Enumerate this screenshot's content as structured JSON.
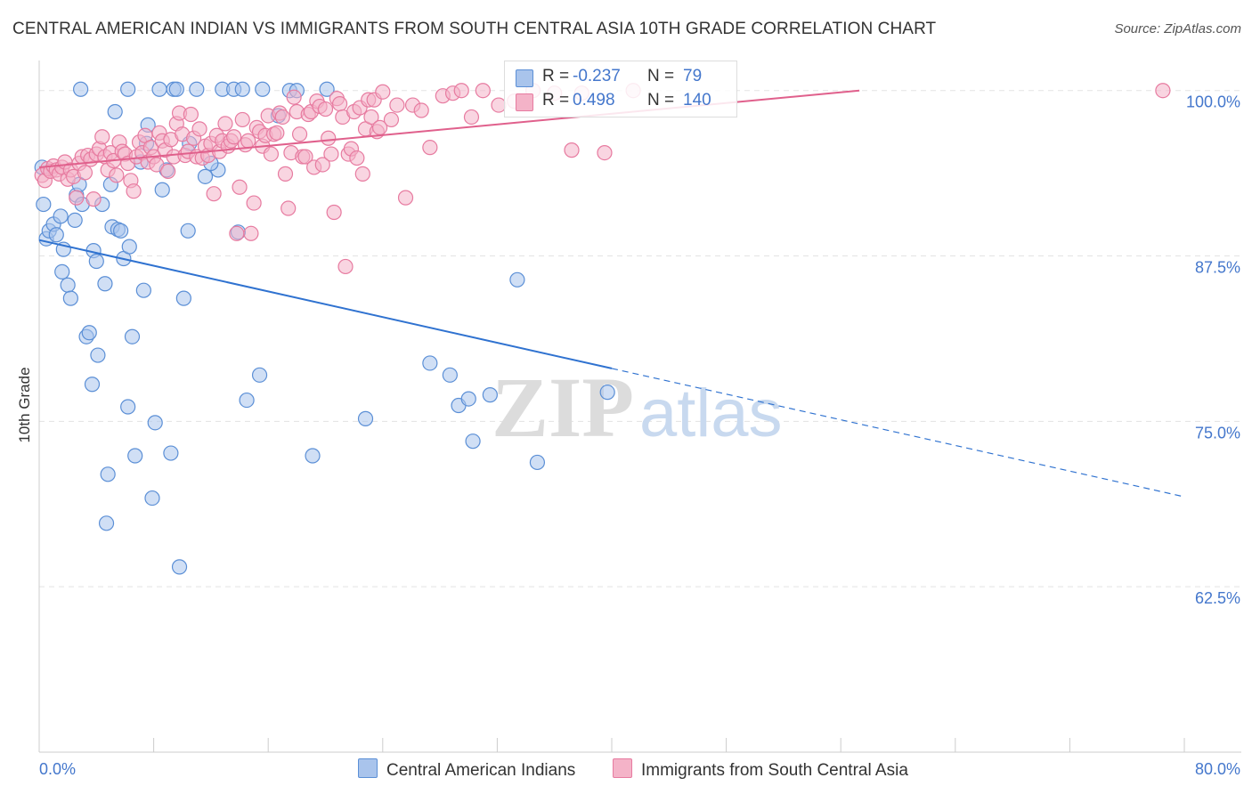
{
  "title": "CENTRAL AMERICAN INDIAN VS IMMIGRANTS FROM SOUTH CENTRAL ASIA 10TH GRADE CORRELATION CHART",
  "source": "Source: ZipAtlas.com",
  "watermark": {
    "zip": "ZIP",
    "atlas": "atlas"
  },
  "colors": {
    "blue_fill": "#a9c4ec",
    "blue_stroke": "#5b8fd6",
    "blue_line": "#2f72d0",
    "pink_fill": "#f4b3c8",
    "pink_stroke": "#e77ba0",
    "pink_line": "#e0608c",
    "grid": "#e3e3e3",
    "tick_text": "#4477cc"
  },
  "legend": {
    "rows": [
      {
        "r_label": "R =",
        "r_value": "-0.237",
        "n_label": "N =",
        "n_value": "79"
      },
      {
        "r_label": "R =",
        "r_value": "0.498",
        "n_label": "N =",
        "n_value": "140"
      }
    ]
  },
  "bottom_legend": [
    "Central American Indians",
    "Immigrants from South Central Asia"
  ],
  "chart_data": {
    "type": "scatter",
    "title": "CENTRAL AMERICAN INDIAN VS IMMIGRANTS FROM SOUTH CENTRAL ASIA 10TH GRADE CORRELATION CHART",
    "xlabel": "",
    "ylabel": "10th Grade",
    "xlim": [
      0,
      80
    ],
    "ylim": [
      50,
      102
    ],
    "x_tick_labels": [
      "0.0%",
      "80.0%"
    ],
    "y_ticks": [
      62.5,
      75.0,
      87.5,
      100.0
    ],
    "y_tick_labels": [
      "62.5%",
      "75.0%",
      "87.5%",
      "100.0%"
    ],
    "grid": true,
    "legend_position": "top-center",
    "series": [
      {
        "name": "Central American Indians",
        "r": -0.237,
        "n": 79,
        "trend": {
          "x": [
            0,
            40
          ],
          "y": [
            88.7,
            79.0
          ],
          "dashed_extension": {
            "x": [
              40,
              80
            ],
            "y": [
              79.0,
              69.3
            ]
          }
        },
        "points": [
          [
            0.2,
            94.2
          ],
          [
            0.3,
            91.4
          ],
          [
            0.5,
            88.8
          ],
          [
            0.7,
            89.4
          ],
          [
            1.0,
            89.9
          ],
          [
            1.2,
            89.1
          ],
          [
            1.5,
            90.5
          ],
          [
            1.7,
            88.0
          ],
          [
            1.6,
            86.3
          ],
          [
            2.0,
            85.3
          ],
          [
            2.2,
            84.3
          ],
          [
            2.5,
            90.2
          ],
          [
            2.6,
            92.1
          ],
          [
            2.8,
            92.9
          ],
          [
            3.0,
            91.4
          ],
          [
            3.3,
            81.4
          ],
          [
            3.5,
            81.7
          ],
          [
            3.7,
            77.8
          ],
          [
            3.8,
            87.9
          ],
          [
            4.0,
            87.1
          ],
          [
            4.1,
            80.0
          ],
          [
            4.4,
            91.4
          ],
          [
            4.6,
            85.4
          ],
          [
            4.8,
            71.0
          ],
          [
            4.7,
            67.3
          ],
          [
            5.0,
            92.9
          ],
          [
            5.1,
            89.7
          ],
          [
            5.3,
            98.4
          ],
          [
            5.5,
            89.5
          ],
          [
            5.7,
            89.4
          ],
          [
            5.9,
            87.3
          ],
          [
            6.2,
            76.1
          ],
          [
            6.3,
            88.2
          ],
          [
            6.5,
            81.4
          ],
          [
            6.7,
            72.4
          ],
          [
            7.1,
            94.6
          ],
          [
            7.3,
            84.9
          ],
          [
            7.5,
            96.0
          ],
          [
            7.6,
            97.4
          ],
          [
            7.9,
            69.2
          ],
          [
            8.1,
            74.9
          ],
          [
            8.6,
            92.5
          ],
          [
            8.9,
            94.0
          ],
          [
            9.2,
            72.6
          ],
          [
            9.4,
            100.1
          ],
          [
            9.6,
            100.1
          ],
          [
            9.8,
            64.0
          ],
          [
            10.1,
            84.3
          ],
          [
            10.4,
            89.4
          ],
          [
            11.0,
            100.1
          ],
          [
            11.6,
            93.5
          ],
          [
            12.5,
            94.0
          ],
          [
            12.8,
            100.1
          ],
          [
            13.6,
            100.1
          ],
          [
            13.9,
            89.3
          ],
          [
            14.5,
            76.6
          ],
          [
            15.4,
            78.5
          ],
          [
            15.6,
            100.1
          ],
          [
            16.7,
            98.1
          ],
          [
            17.5,
            100.0
          ],
          [
            18.0,
            100.0
          ],
          [
            19.1,
            72.4
          ],
          [
            20.1,
            100.1
          ],
          [
            22.8,
            75.2
          ],
          [
            27.3,
            79.4
          ],
          [
            28.7,
            78.5
          ],
          [
            29.3,
            76.2
          ],
          [
            30.0,
            76.7
          ],
          [
            30.3,
            73.5
          ],
          [
            31.5,
            77.0
          ],
          [
            33.4,
            85.7
          ],
          [
            34.8,
            71.9
          ],
          [
            39.7,
            77.2
          ],
          [
            8.4,
            100.1
          ],
          [
            6.2,
            100.1
          ],
          [
            10.5,
            96.0
          ],
          [
            12.0,
            94.5
          ],
          [
            14.2,
            100.1
          ],
          [
            2.9,
            100.1
          ]
        ]
      },
      {
        "name": "Immigrants from South Central Asia",
        "r": 0.498,
        "n": 140,
        "trend": {
          "x": [
            0,
            57.3
          ],
          "y": [
            94.2,
            100.0
          ]
        },
        "points": [
          [
            0.2,
            93.6
          ],
          [
            0.4,
            93.2
          ],
          [
            0.6,
            94.1
          ],
          [
            0.8,
            93.9
          ],
          [
            1.0,
            94.3
          ],
          [
            1.2,
            94.0
          ],
          [
            1.4,
            93.7
          ],
          [
            1.6,
            94.2
          ],
          [
            1.8,
            94.6
          ],
          [
            2.0,
            93.3
          ],
          [
            2.2,
            94.0
          ],
          [
            2.4,
            93.5
          ],
          [
            2.6,
            91.9
          ],
          [
            2.8,
            94.5
          ],
          [
            3.0,
            95.0
          ],
          [
            3.2,
            93.8
          ],
          [
            3.4,
            95.1
          ],
          [
            3.6,
            94.8
          ],
          [
            3.8,
            91.8
          ],
          [
            4.0,
            95.2
          ],
          [
            4.2,
            95.6
          ],
          [
            4.4,
            96.5
          ],
          [
            4.6,
            95.0
          ],
          [
            4.8,
            94.0
          ],
          [
            5.0,
            95.3
          ],
          [
            5.2,
            94.7
          ],
          [
            5.4,
            93.6
          ],
          [
            5.6,
            96.1
          ],
          [
            5.8,
            95.4
          ],
          [
            6.0,
            95.2
          ],
          [
            6.2,
            94.5
          ],
          [
            6.4,
            93.2
          ],
          [
            6.6,
            92.4
          ],
          [
            6.8,
            95.0
          ],
          [
            7.0,
            96.1
          ],
          [
            7.2,
            95.3
          ],
          [
            7.4,
            96.6
          ],
          [
            7.6,
            94.6
          ],
          [
            7.8,
            95.7
          ],
          [
            8.0,
            95.0
          ],
          [
            8.2,
            94.4
          ],
          [
            8.4,
            96.8
          ],
          [
            8.6,
            96.2
          ],
          [
            8.8,
            95.5
          ],
          [
            9.0,
            93.9
          ],
          [
            9.2,
            96.3
          ],
          [
            9.4,
            95.0
          ],
          [
            9.6,
            97.5
          ],
          [
            9.8,
            98.3
          ],
          [
            10.0,
            96.7
          ],
          [
            10.2,
            95.1
          ],
          [
            10.4,
            95.4
          ],
          [
            10.6,
            98.2
          ],
          [
            10.8,
            96.4
          ],
          [
            11.0,
            95.0
          ],
          [
            11.2,
            97.1
          ],
          [
            11.4,
            94.9
          ],
          [
            11.6,
            95.8
          ],
          [
            11.8,
            95.1
          ],
          [
            12.0,
            96.0
          ],
          [
            12.2,
            92.2
          ],
          [
            12.4,
            96.6
          ],
          [
            12.6,
            95.4
          ],
          [
            12.8,
            96.2
          ],
          [
            13.0,
            97.5
          ],
          [
            13.2,
            95.8
          ],
          [
            13.4,
            96.2
          ],
          [
            13.6,
            96.5
          ],
          [
            13.8,
            89.2
          ],
          [
            14.0,
            92.7
          ],
          [
            14.2,
            97.8
          ],
          [
            14.4,
            95.9
          ],
          [
            14.6,
            96.2
          ],
          [
            14.8,
            89.2
          ],
          [
            15.0,
            91.5
          ],
          [
            15.2,
            97.2
          ],
          [
            15.4,
            96.9
          ],
          [
            15.6,
            95.8
          ],
          [
            15.8,
            96.6
          ],
          [
            16.0,
            98.1
          ],
          [
            16.2,
            95.2
          ],
          [
            16.4,
            96.7
          ],
          [
            16.6,
            96.8
          ],
          [
            16.8,
            98.3
          ],
          [
            17.0,
            98.0
          ],
          [
            17.2,
            93.7
          ],
          [
            17.4,
            91.1
          ],
          [
            17.6,
            95.3
          ],
          [
            17.8,
            99.5
          ],
          [
            18.0,
            98.4
          ],
          [
            18.2,
            96.7
          ],
          [
            18.4,
            95.0
          ],
          [
            18.6,
            95.0
          ],
          [
            18.8,
            98.2
          ],
          [
            19.0,
            98.4
          ],
          [
            19.2,
            94.2
          ],
          [
            19.4,
            99.2
          ],
          [
            19.6,
            98.8
          ],
          [
            19.8,
            94.4
          ],
          [
            20.0,
            98.6
          ],
          [
            20.2,
            96.4
          ],
          [
            20.4,
            95.2
          ],
          [
            20.6,
            90.8
          ],
          [
            20.8,
            99.4
          ],
          [
            21.0,
            99.0
          ],
          [
            21.2,
            98.0
          ],
          [
            21.4,
            86.7
          ],
          [
            21.6,
            95.2
          ],
          [
            21.8,
            95.6
          ],
          [
            22.0,
            98.4
          ],
          [
            22.2,
            94.9
          ],
          [
            22.4,
            98.7
          ],
          [
            22.6,
            93.7
          ],
          [
            22.8,
            97.1
          ],
          [
            23.0,
            99.3
          ],
          [
            23.2,
            98.0
          ],
          [
            23.4,
            99.3
          ],
          [
            23.6,
            96.9
          ],
          [
            23.8,
            97.2
          ],
          [
            24.0,
            99.9
          ],
          [
            24.6,
            97.8
          ],
          [
            25.0,
            98.9
          ],
          [
            25.6,
            91.9
          ],
          [
            26.1,
            98.9
          ],
          [
            26.7,
            98.5
          ],
          [
            27.3,
            95.7
          ],
          [
            28.2,
            99.6
          ],
          [
            28.9,
            99.8
          ],
          [
            29.5,
            100.0
          ],
          [
            30.2,
            98.0
          ],
          [
            31.0,
            100.0
          ],
          [
            32.1,
            98.9
          ],
          [
            33.2,
            99.2
          ],
          [
            34.5,
            100.0
          ],
          [
            36.0,
            99.8
          ],
          [
            37.2,
            95.5
          ],
          [
            37.9,
            99.8
          ],
          [
            39.5,
            95.3
          ],
          [
            41.5,
            100.0
          ],
          [
            78.5,
            100.0
          ]
        ]
      }
    ]
  }
}
